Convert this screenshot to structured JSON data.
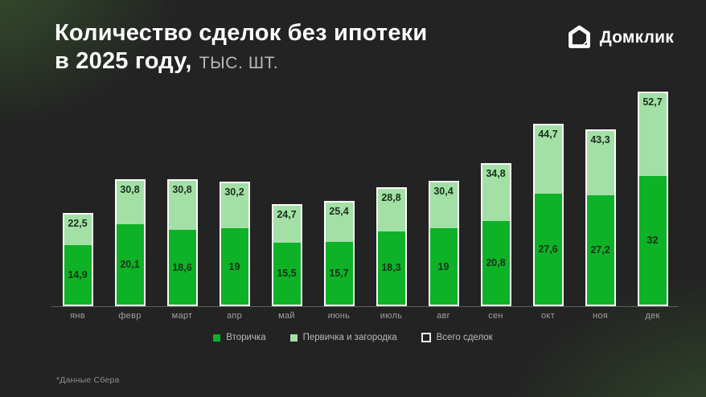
{
  "title": {
    "line1": "Количество сделок без ипотеки",
    "line2": "в 2025 году,",
    "unit": "ТЫС. ШТ."
  },
  "logo": {
    "text": "Домклик",
    "icon": "domclick-house-icon"
  },
  "footnote": "*Данные Сбера",
  "colors": {
    "background": "#232323",
    "bright_green": "#0DB226",
    "light_green": "#A3E0A6",
    "bar_outline": "#FBFBFB",
    "glow_green": "#467634"
  },
  "legend": [
    {
      "label": "Вторичка",
      "swatch": "filled-bright-green"
    },
    {
      "label": "Первичка и загородка",
      "swatch": "filled-light-green"
    },
    {
      "label": "Всего сделок",
      "swatch": "outlined-white"
    }
  ],
  "chart_data": {
    "type": "bar",
    "stacked": true,
    "title": "Количество сделок без ипотеки в 2025 году",
    "ylabel": "тыс. шт.",
    "categories": [
      "янв",
      "февр",
      "март",
      "апр",
      "май",
      "июнь",
      "июль",
      "авг",
      "сен",
      "окт",
      "ноя",
      "дек"
    ],
    "series": [
      {
        "name": "Вторичка",
        "values": [
          14.9,
          20.1,
          18.6,
          19,
          15.5,
          15.7,
          18.3,
          19,
          20.8,
          27.6,
          27.2,
          32
        ]
      },
      {
        "name": "Первичка и загородка",
        "values": [
          7.6,
          10.7,
          12.2,
          11.2,
          9.2,
          9.7,
          10.5,
          11.4,
          14,
          17.1,
          16.1,
          20.7
        ]
      }
    ],
    "totals": [
      22.5,
      30.8,
      30.8,
      30.2,
      24.7,
      25.4,
      28.8,
      30.4,
      34.8,
      44.7,
      43.3,
      52.7
    ],
    "ylim": [
      0,
      55
    ],
    "grid": false,
    "legend_position": "bottom"
  }
}
